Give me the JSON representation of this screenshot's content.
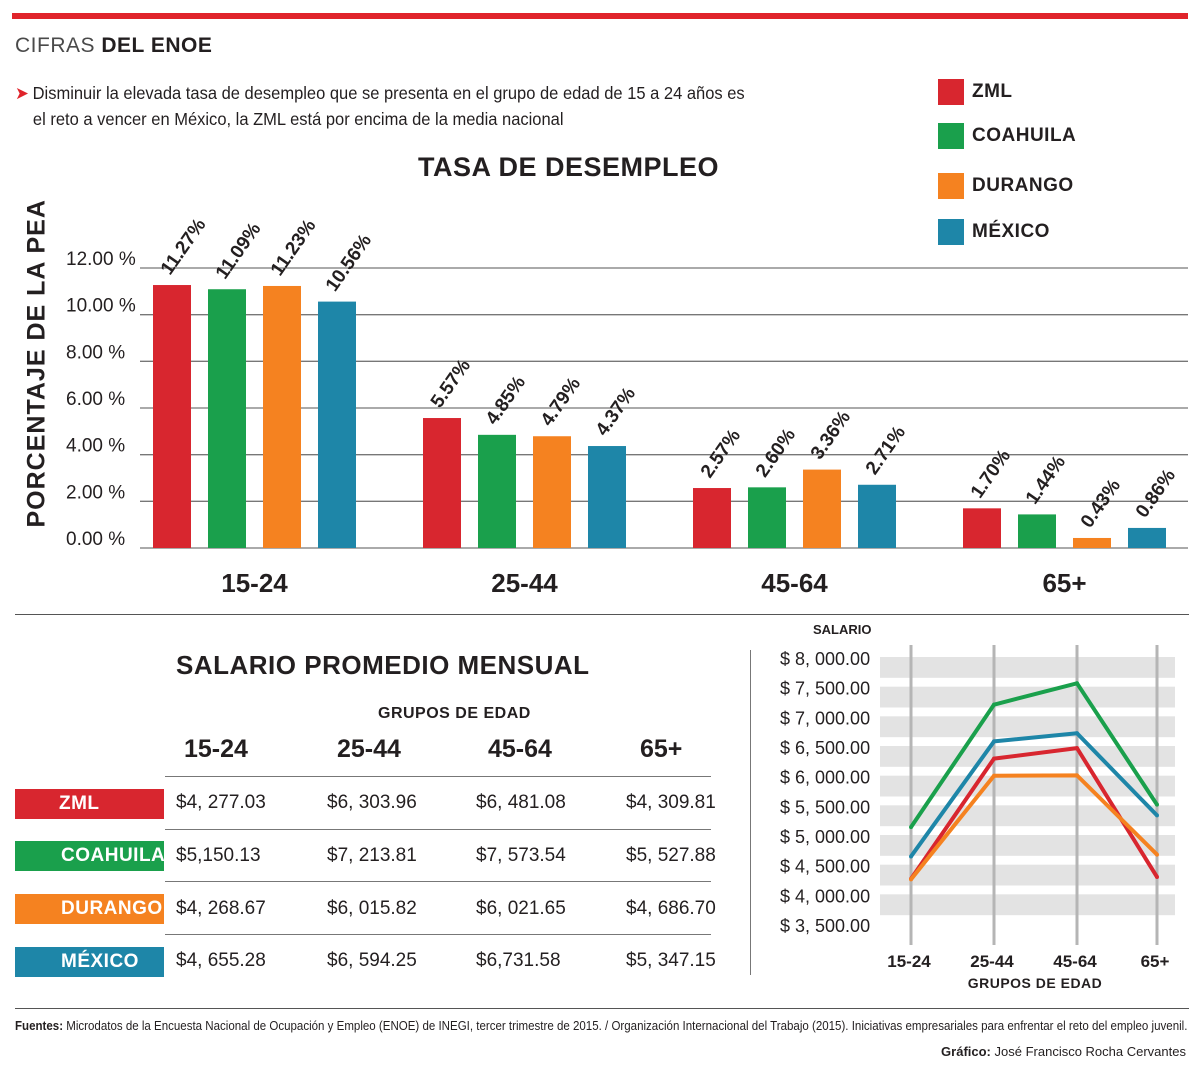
{
  "header": {
    "light": "CIFRAS",
    "bold": "DEL ENOE"
  },
  "intro": {
    "arrow": "➤",
    "line1": "Disminuir la elevada tasa de desempleo que se presenta en el grupo  de edad de 15 a 24 años es",
    "line2": "el reto a vencer en México, la ZML está por encima de la media nacional"
  },
  "colors": {
    "ZML": "#d8262f",
    "COAHUILA": "#1aa04c",
    "DURANGO": "#f58220",
    "MEXICO": "#1e86a8",
    "accent": "#e0242b"
  },
  "legend": [
    {
      "label": "ZML",
      "color": "#d8262f"
    },
    {
      "label": "COAHUILA",
      "color": "#1aa04c"
    },
    {
      "label": "DURANGO",
      "color": "#f58220"
    },
    {
      "label": "MÉXICO",
      "color": "#1e86a8"
    }
  ],
  "chart_data": [
    {
      "type": "bar",
      "title": "TASA DE DESEMPLEO",
      "ylabel": "PORCENTAJE DE LA PEA",
      "xlabel": "",
      "ylim": [
        0,
        12
      ],
      "yticks": [
        "12.00 %",
        "10.00 %",
        "8.00 %",
        "6.00 %",
        "4.00 %",
        "2.00 %",
        "0.00 %"
      ],
      "yticks_values": [
        12,
        10,
        8,
        6,
        4,
        2,
        0
      ],
      "categories": [
        "15-24",
        "25-44",
        "45-64",
        "65+"
      ],
      "series": [
        {
          "name": "ZML",
          "color": "#d8262f",
          "values": [
            11.27,
            5.57,
            2.57,
            1.7
          ],
          "labels": [
            "11.27%",
            "5.57%",
            "2.57%",
            "1.70%"
          ]
        },
        {
          "name": "COAHUILA",
          "color": "#1aa04c",
          "values": [
            11.09,
            4.85,
            2.6,
            1.44
          ],
          "labels": [
            "11.09%",
            "4.85%",
            "2.60%",
            "1.44%"
          ]
        },
        {
          "name": "DURANGO",
          "color": "#f58220",
          "values": [
            11.23,
            4.79,
            3.36,
            0.43
          ],
          "labels": [
            "11.23%",
            "4.79%",
            "3.36%",
            "0.43%"
          ]
        },
        {
          "name": "MÉXICO",
          "color": "#1e86a8",
          "values": [
            10.56,
            4.37,
            2.71,
            0.86
          ],
          "labels": [
            "10.56%",
            "4.37%",
            "2.71%",
            "0.86%"
          ]
        }
      ],
      "grid": true
    },
    {
      "type": "line",
      "title": "SALARIO",
      "xlabel": "GRUPOS DE EDAD",
      "ylim": [
        3500,
        8000
      ],
      "yticks": [
        "$ 8, 000.00",
        "$ 7, 500.00",
        "$ 7, 000.00",
        "$ 6, 500.00",
        "$ 6, 000.00",
        "$ 5, 500.00",
        "$ 5, 000.00",
        "$ 4, 500.00",
        "$ 4, 000.00",
        "$ 3, 500.00"
      ],
      "yticks_values": [
        8000,
        7500,
        7000,
        6500,
        6000,
        5500,
        5000,
        4500,
        4000,
        3500
      ],
      "categories": [
        "15-24",
        "25-44",
        "45-64",
        "65+"
      ],
      "series": [
        {
          "name": "ZML",
          "color": "#d8262f",
          "values": [
            4277.03,
            6303.96,
            6481.08,
            4309.81
          ]
        },
        {
          "name": "COAHUILA",
          "color": "#1aa04c",
          "values": [
            5150.13,
            7213.81,
            7573.54,
            5527.88
          ]
        },
        {
          "name": "DURANGO",
          "color": "#f58220",
          "values": [
            4268.67,
            6015.82,
            6021.65,
            4686.7
          ]
        },
        {
          "name": "MÉXICO",
          "color": "#1e86a8",
          "values": [
            4655.28,
            6594.25,
            6731.58,
            5347.15
          ]
        }
      ],
      "grid": true
    }
  ],
  "salary_table": {
    "title": "SALARIO PROMEDIO MENSUAL",
    "group_title": "GRUPOS DE EDAD",
    "columns": [
      "15-24",
      "25-44",
      "45-64",
      "65+"
    ],
    "rows": [
      {
        "label": "ZML",
        "color": "#d8262f",
        "values": [
          "$4, 277.03",
          "$6, 303.96",
          "$6, 481.08",
          "$4, 309.81"
        ]
      },
      {
        "label": "COAHUILA",
        "color": "#1aa04c",
        "values": [
          "$5,150.13",
          "$7, 213.81",
          "$7, 573.54",
          "$5, 527.88"
        ]
      },
      {
        "label": "DURANGO",
        "color": "#f58220",
        "values": [
          "$4, 268.67",
          "$6, 015.82",
          "$6, 021.65",
          "$4, 686.70"
        ]
      },
      {
        "label": "MÉXICO",
        "color": "#1e86a8",
        "values": [
          "$4, 655.28",
          "$6, 594.25",
          "$6,731.58",
          "$5, 347.15"
        ]
      }
    ]
  },
  "footer": {
    "sources_label": "Fuentes:",
    "sources_text": "Microdatos de la Encuesta Nacional de Ocupación y Empleo (ENOE) de INEGI, tercer trimestre de 2015. / Organización Internacional del Trabajo (2015). Iniciativas empresariales para enfrentar el reto del empleo juvenil.",
    "credit_label": "Gráfico:",
    "credit_text": "José Francisco Rocha Cervantes"
  }
}
